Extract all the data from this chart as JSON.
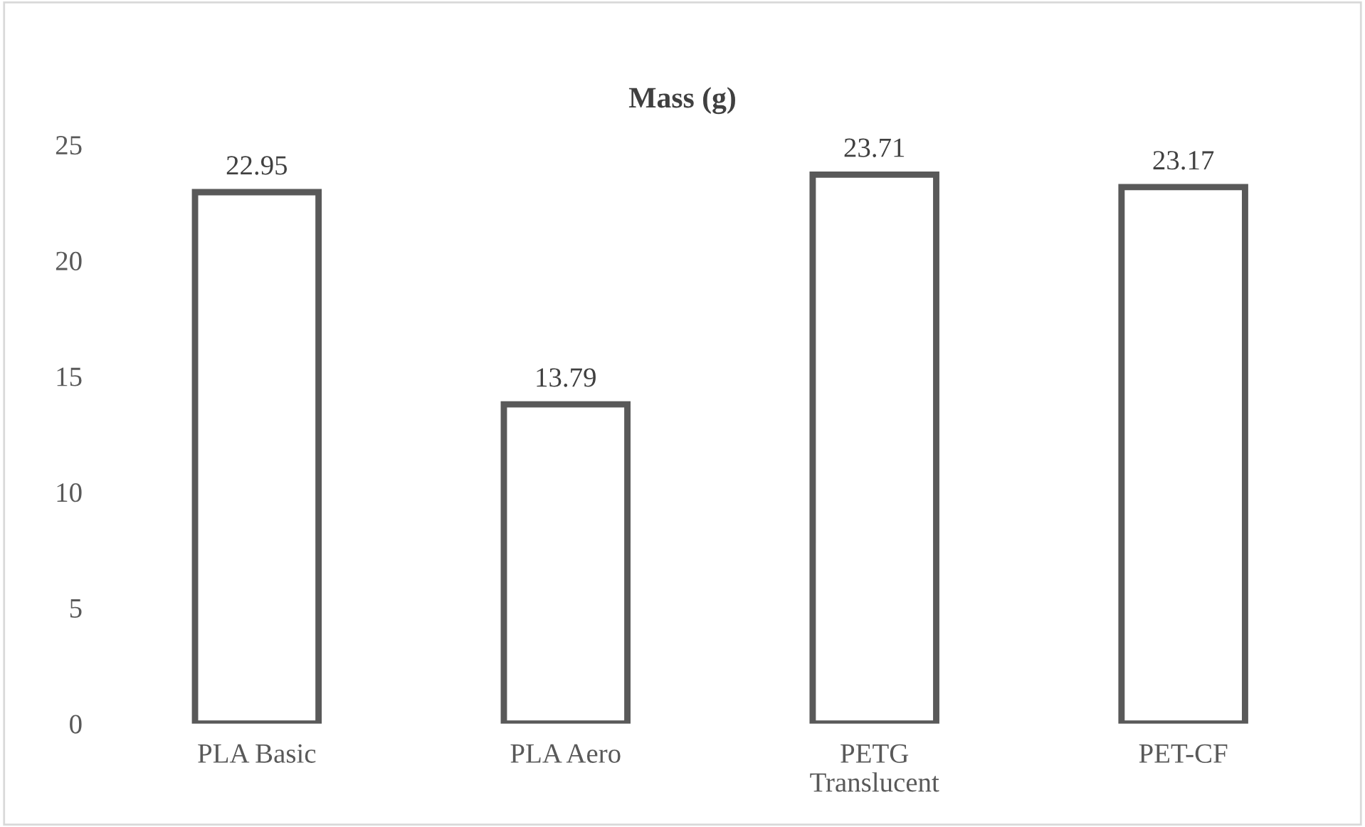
{
  "chart_data": {
    "type": "bar",
    "title": "Mass (g)",
    "categories": [
      "PLA Basic",
      "PLA Aero",
      "PETG Translucent",
      "PET-CF"
    ],
    "values": [
      22.95,
      13.79,
      23.71,
      23.17
    ],
    "color": "#595959",
    "ylim": [
      0,
      25
    ],
    "yticks": [
      0,
      5,
      10,
      15,
      20,
      25
    ],
    "grid": false,
    "data_labels": true
  }
}
